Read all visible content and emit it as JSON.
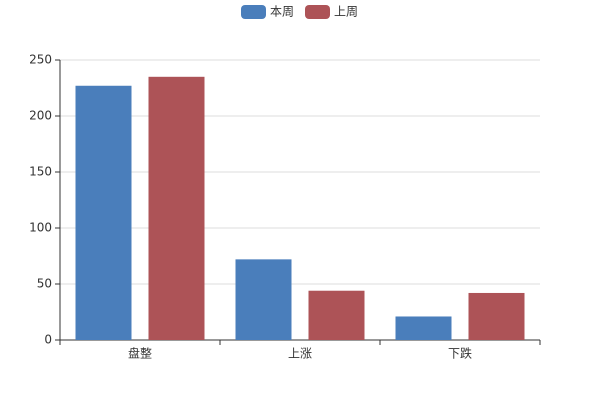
{
  "chart_data": {
    "type": "bar",
    "categories": [
      "盘整",
      "上涨",
      "下跌"
    ],
    "series": [
      {
        "name": "本周",
        "color": "#4a7ebb",
        "values": [
          227,
          72,
          21
        ]
      },
      {
        "name": "上周",
        "color": "#ad5357",
        "values": [
          235,
          44,
          42
        ]
      }
    ],
    "ylim": [
      0,
      250
    ],
    "yticks": [
      0,
      50,
      100,
      150,
      200,
      250
    ],
    "grid": true
  }
}
